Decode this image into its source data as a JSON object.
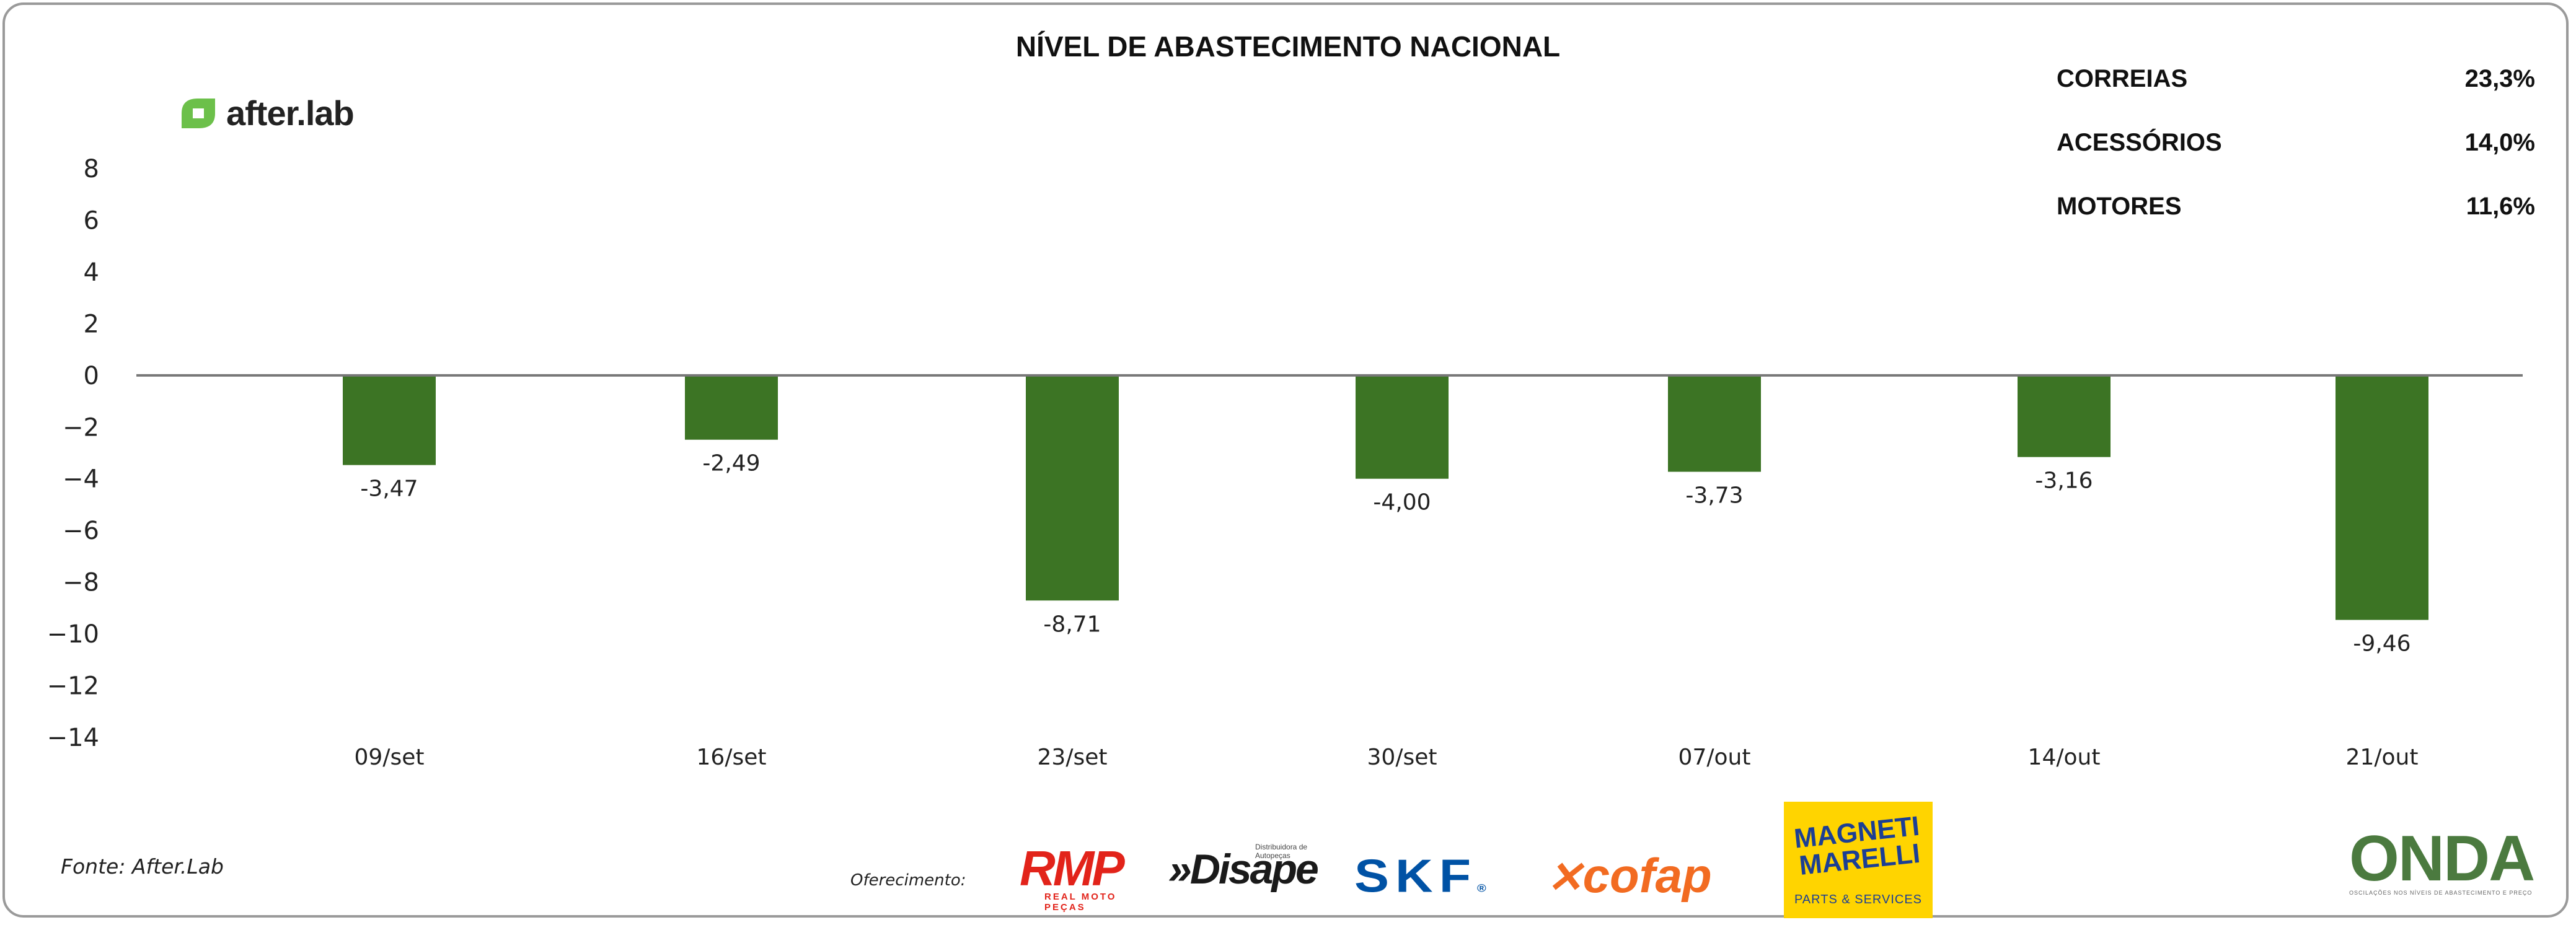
{
  "title": "NÍVEL DE ABASTECIMENTO NACIONAL",
  "brand": {
    "name": "after.lab",
    "icon": "after-lab-leaf-icon",
    "color": "#6cc04a"
  },
  "stats": [
    {
      "label": "CORREIAS",
      "value": "23,3%"
    },
    {
      "label": "ACESSÓRIOS",
      "value": "14,0%"
    },
    {
      "label": "MOTORES",
      "value": "11,6%"
    }
  ],
  "chart_data": {
    "type": "bar",
    "title": "NÍVEL DE ABASTECIMENTO NACIONAL",
    "categories": [
      "09/set",
      "16/set",
      "23/set",
      "30/set",
      "07/out",
      "14/out",
      "21/out"
    ],
    "values": [
      -3.47,
      -2.49,
      -8.71,
      -4.0,
      -3.73,
      -3.16,
      -9.46
    ],
    "value_labels": [
      "-3,47",
      "-2,49",
      "-8,71",
      "-4,00",
      "-3,73",
      "-3,16",
      "-9,46"
    ],
    "ylim": [
      -14,
      8
    ],
    "yticks": [
      8,
      6,
      4,
      2,
      0,
      -2,
      -4,
      -6,
      -8,
      -10,
      -12,
      -14
    ],
    "xlabel": "",
    "ylabel": "",
    "bar_color": "#3c7424",
    "axis_color": "#777777",
    "grid": false,
    "legend": "none"
  },
  "footer": {
    "source": "Fonte: After.Lab",
    "offer_label": "Oferecimento:"
  },
  "sponsors": {
    "rmp": {
      "name": "RMP",
      "tagline": "REAL MOTO PEÇAS",
      "color": "#e2231a"
    },
    "disape": {
      "name": "»Disape",
      "tagline": "Distribuidora de Autopeças",
      "color": "#1a1a1a"
    },
    "skf": {
      "name": "SKF",
      "mark": "®",
      "color": "#0052a5"
    },
    "cofap": {
      "name": "cofap",
      "color": "#f26b21"
    },
    "magneti": {
      "name": "MAGNETI MARELLI",
      "tagline": "PARTS & SERVICES",
      "bg": "#ffd400",
      "color": "#1c3f94"
    },
    "onda": {
      "name": "ONDA",
      "tagline": "OSCILAÇÕES NOS NÍVEIS DE ABASTECIMENTO E PREÇO",
      "color": "#4b7a3f"
    }
  }
}
